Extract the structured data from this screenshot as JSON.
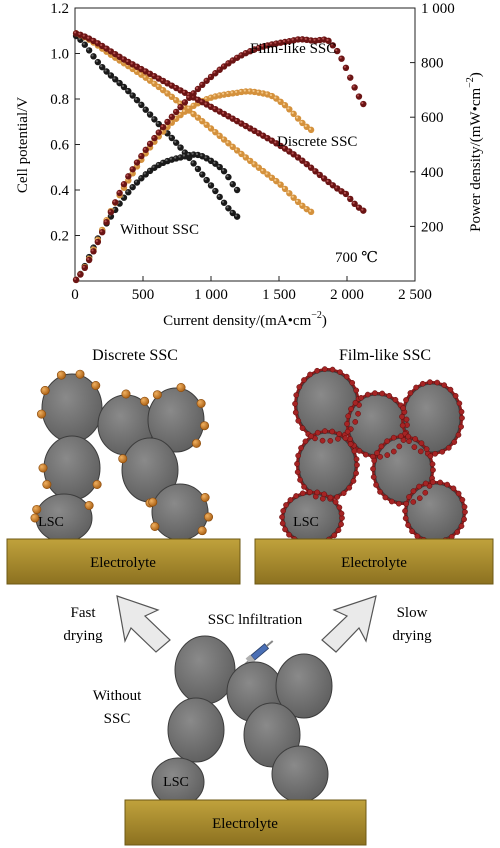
{
  "chart_data": {
    "type": "scatter",
    "x_axis": {
      "label": "Current density/(mA•cm",
      "label_sup": "−2",
      "label_end": ")",
      "range": [
        0,
        2500
      ],
      "ticks": [
        0,
        500,
        1000,
        1500,
        2000,
        2500
      ],
      "tick_labels": [
        "0",
        "500",
        "1 000",
        "1 500",
        "2 000",
        "2 500"
      ]
    },
    "y_left": {
      "label": "Cell potential/V",
      "range": [
        0,
        1.2
      ],
      "ticks": [
        0.2,
        0.4,
        0.6,
        0.8,
        1.0,
        1.2
      ],
      "tick_labels": [
        "0.2",
        "0.4",
        "0.6",
        "0.8",
        "1.0",
        "1.2"
      ]
    },
    "y_right": {
      "label": "Power density/(mW•cm",
      "label_sup": "−2",
      "label_end": ")",
      "range": [
        0,
        1000
      ],
      "ticks": [
        200,
        400,
        600,
        800,
        1000
      ],
      "tick_labels": [
        "200",
        "400",
        "600",
        "800",
        "1 000"
      ]
    },
    "temperature_label": "700 ℃",
    "series": [
      {
        "name": "Without SSC",
        "color": "#1a1a1a",
        "voltage": {
          "x": [
            0,
            200,
            400,
            600,
            800,
            1000,
            1200
          ],
          "y": [
            1.08,
            0.94,
            0.83,
            0.7,
            0.57,
            0.42,
            0.28
          ]
        },
        "power": {
          "x": [
            0,
            200,
            400,
            600,
            800,
            900,
            1000,
            1100,
            1200
          ],
          "y": [
            0,
            185,
            330,
            420,
            455,
            462,
            440,
            400,
            330
          ]
        }
      },
      {
        "name": "Discrete SSC",
        "color": "#d4913c",
        "voltage": {
          "x": [
            0,
            300,
            600,
            900,
            1200,
            1500,
            1750
          ],
          "y": [
            1.09,
            0.98,
            0.86,
            0.72,
            0.57,
            0.43,
            0.3
          ]
        },
        "power": {
          "x": [
            0,
            300,
            600,
            900,
            1200,
            1350,
            1500,
            1750
          ],
          "y": [
            0,
            290,
            520,
            650,
            690,
            690,
            660,
            550
          ]
        }
      },
      {
        "name": "Film-like SSC",
        "color": "#6b1414",
        "voltage": {
          "x": [
            0,
            400,
            800,
            1200,
            1600,
            2000,
            2150
          ],
          "y": [
            1.09,
            0.96,
            0.83,
            0.7,
            0.56,
            0.38,
            0.3
          ]
        },
        "power": {
          "x": [
            0,
            400,
            800,
            1200,
            1600,
            1750,
            1900,
            2150
          ],
          "y": [
            0,
            390,
            650,
            820,
            880,
            880,
            860,
            630
          ]
        }
      }
    ]
  },
  "diagram": {
    "top_left_title": "Discrete SSC",
    "top_right_title": "Film-like SSC",
    "electrolyte_label": "Electrolyte",
    "lsc_label": "LSC",
    "fast_drying": [
      "Fast",
      "drying"
    ],
    "slow_drying": [
      "Slow",
      "drying"
    ],
    "infiltration_label": "SSC lnfiltration",
    "without_ssc": [
      "Without",
      "SSC"
    ],
    "colors": {
      "electrolyte": "#a7892a",
      "particle": "#737373",
      "discrete_dot": "#c77b22",
      "film": "#8e1b1b",
      "arrow": "#e9e9e9"
    }
  }
}
